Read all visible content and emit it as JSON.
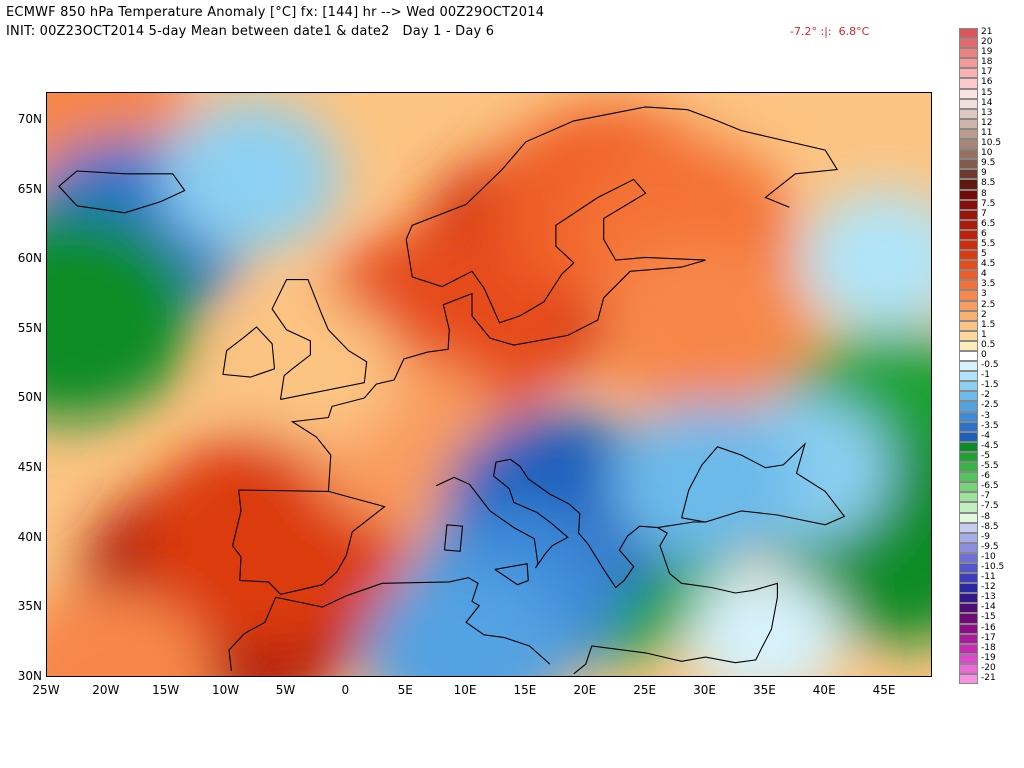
{
  "title_line1": "ECMWF 850 hPa Temperature Anomaly [°C] fx: [144] hr --> Wed 00Z29OCT2014",
  "title_line2": "INIT: 00Z23OCT2014 5-day Mean between date1 & date2   Day 1 - Day 6",
  "min_max": "-7.2° :|:  6.8°C",
  "map": {
    "lon_range": [
      -25,
      49
    ],
    "lat_range": [
      30,
      72
    ],
    "lat_ticks": [
      {
        "lat": 70,
        "label": "70N"
      },
      {
        "lat": 65,
        "label": "65N"
      },
      {
        "lat": 60,
        "label": "60N"
      },
      {
        "lat": 55,
        "label": "55N"
      },
      {
        "lat": 50,
        "label": "50N"
      },
      {
        "lat": 45,
        "label": "45N"
      },
      {
        "lat": 40,
        "label": "40N"
      },
      {
        "lat": 35,
        "label": "35N"
      },
      {
        "lat": 30,
        "label": "30N"
      }
    ],
    "lon_ticks": [
      {
        "lon": -25,
        "label": "25W"
      },
      {
        "lon": -20,
        "label": "20W"
      },
      {
        "lon": -15,
        "label": "15W"
      },
      {
        "lon": -10,
        "label": "10W"
      },
      {
        "lon": -5,
        "label": "5W"
      },
      {
        "lon": 0,
        "label": "0"
      },
      {
        "lon": 5,
        "label": "5E"
      },
      {
        "lon": 10,
        "label": "10E"
      },
      {
        "lon": 15,
        "label": "15E"
      },
      {
        "lon": 20,
        "label": "20E"
      },
      {
        "lon": 25,
        "label": "25E"
      },
      {
        "lon": 30,
        "label": "30E"
      },
      {
        "lon": 35,
        "label": "35E"
      },
      {
        "lon": 40,
        "label": "40E"
      },
      {
        "lon": 45,
        "label": "45E"
      }
    ],
    "anomaly_centers": [
      {
        "lon": -10,
        "lat": 36,
        "value": 6.5
      },
      {
        "lon": -6,
        "lat": 40,
        "value": 5
      },
      {
        "lon": 17,
        "lat": 60,
        "value": 5.5
      },
      {
        "lon": 8,
        "lat": 55,
        "value": 4.5
      },
      {
        "lon": 22,
        "lat": 64,
        "value": 4
      },
      {
        "lon": 28,
        "lat": 62,
        "value": 3.5
      },
      {
        "lon": -22,
        "lat": 71,
        "value": 3
      },
      {
        "lon": 30,
        "lat": 55,
        "value": 3
      },
      {
        "lon": 5,
        "lat": 47,
        "value": 2.5
      },
      {
        "lon": -3,
        "lat": 52,
        "value": 1.5
      },
      {
        "lon": -18,
        "lat": 62,
        "value": -3.5
      },
      {
        "lon": -23,
        "lat": 56,
        "value": -4.5
      },
      {
        "lon": -8,
        "lat": 66,
        "value": -1.5
      },
      {
        "lon": 21,
        "lat": 39,
        "value": -5
      },
      {
        "lon": 18,
        "lat": 42,
        "value": -4
      },
      {
        "lon": 14,
        "lat": 36,
        "value": -3
      },
      {
        "lon": 10,
        "lat": 32,
        "value": -2.5
      },
      {
        "lon": 46,
        "lat": 47,
        "value": -5
      },
      {
        "lon": 46,
        "lat": 40,
        "value": -4.5
      },
      {
        "lon": 45,
        "lat": 60,
        "value": -1
      },
      {
        "lon": 38,
        "lat": 45,
        "value": -1.5
      },
      {
        "lon": 35,
        "lat": 33,
        "value": -0.5
      },
      {
        "lon": 30,
        "lat": 44,
        "value": -2
      },
      {
        "lon": -20,
        "lat": 30,
        "value": 3
      }
    ]
  },
  "colorbar": [
    {
      "label": "21",
      "color": "#e05458"
    },
    {
      "label": "20",
      "color": "#e8696c"
    },
    {
      "label": "19",
      "color": "#ef8080"
    },
    {
      "label": "18",
      "color": "#f49898"
    },
    {
      "label": "17",
      "color": "#f8b0b0"
    },
    {
      "label": "16",
      "color": "#fccaca"
    },
    {
      "label": "15",
      "color": "#fde2e2"
    },
    {
      "label": "14",
      "color": "#f0e0dc"
    },
    {
      "label": "13",
      "color": "#dfc8c0"
    },
    {
      "label": "12",
      "color": "#cfb2a8"
    },
    {
      "label": "11",
      "color": "#bd9c90"
    },
    {
      "label": "10.5",
      "color": "#aa8678"
    },
    {
      "label": "10",
      "color": "#977062"
    },
    {
      "label": "9.5",
      "color": "#845a4c"
    },
    {
      "label": "9",
      "color": "#6e3a2e"
    },
    {
      "label": "8.5",
      "color": "#601810"
    },
    {
      "label": "8",
      "color": "#740c06"
    },
    {
      "label": "7.5",
      "color": "#880d08"
    },
    {
      "label": "7",
      "color": "#9a1208"
    },
    {
      "label": "6.5",
      "color": "#ae1a08"
    },
    {
      "label": "6",
      "color": "#c02008"
    },
    {
      "label": "5.5",
      "color": "#d02c0c"
    },
    {
      "label": "5",
      "color": "#dc3a10"
    },
    {
      "label": "4.5",
      "color": "#e64c1c"
    },
    {
      "label": "4",
      "color": "#ef5e28"
    },
    {
      "label": "3.5",
      "color": "#f47236"
    },
    {
      "label": "3",
      "color": "#f7874a"
    },
    {
      "label": "2.5",
      "color": "#f99c5e"
    },
    {
      "label": "2",
      "color": "#fbb070"
    },
    {
      "label": "1.5",
      "color": "#fcc482"
    },
    {
      "label": "1",
      "color": "#fdd898"
    },
    {
      "label": "0.5",
      "color": "#feecb8"
    },
    {
      "label": "0",
      "color": "#ffffff"
    },
    {
      "label": "-0.5",
      "color": "#d6f2fc"
    },
    {
      "label": "-1",
      "color": "#b0e4f8"
    },
    {
      "label": "-1.5",
      "color": "#8cd0f2"
    },
    {
      "label": "-2",
      "color": "#6cbaea"
    },
    {
      "label": "-2.5",
      "color": "#52a2e2"
    },
    {
      "label": "-3",
      "color": "#3c8ad8"
    },
    {
      "label": "-3.5",
      "color": "#2c72cc"
    },
    {
      "label": "-4",
      "color": "#1e5ebc"
    },
    {
      "label": "-4.5",
      "color": "#0c8c28"
    },
    {
      "label": "-5",
      "color": "#1ea234"
    },
    {
      "label": "-5.5",
      "color": "#36b446"
    },
    {
      "label": "-6",
      "color": "#54c45c"
    },
    {
      "label": "-6.5",
      "color": "#78d47a"
    },
    {
      "label": "-7",
      "color": "#9ce29a"
    },
    {
      "label": "-7.5",
      "color": "#c0eebc"
    },
    {
      "label": "-8",
      "color": "#e0f8dc"
    },
    {
      "label": "-8.5",
      "color": "#c8ccf0"
    },
    {
      "label": "-9",
      "color": "#a8acea"
    },
    {
      "label": "-9.5",
      "color": "#8a8ee2"
    },
    {
      "label": "-10",
      "color": "#6e70d8"
    },
    {
      "label": "-10.5",
      "color": "#5454cc"
    },
    {
      "label": "-11",
      "color": "#3e3cbe"
    },
    {
      "label": "-12",
      "color": "#2a26a8"
    },
    {
      "label": "-13",
      "color": "#36168c"
    },
    {
      "label": "-14",
      "color": "#520c7a"
    },
    {
      "label": "-15",
      "color": "#700a78"
    },
    {
      "label": "-16",
      "color": "#8e0c88"
    },
    {
      "label": "-17",
      "color": "#ac1a9e"
    },
    {
      "label": "-18",
      "color": "#c82cb6"
    },
    {
      "label": "-19",
      "color": "#de48ca"
    },
    {
      "label": "-20",
      "color": "#ee6ad8"
    },
    {
      "label": "-21",
      "color": "#f890e4"
    }
  ]
}
